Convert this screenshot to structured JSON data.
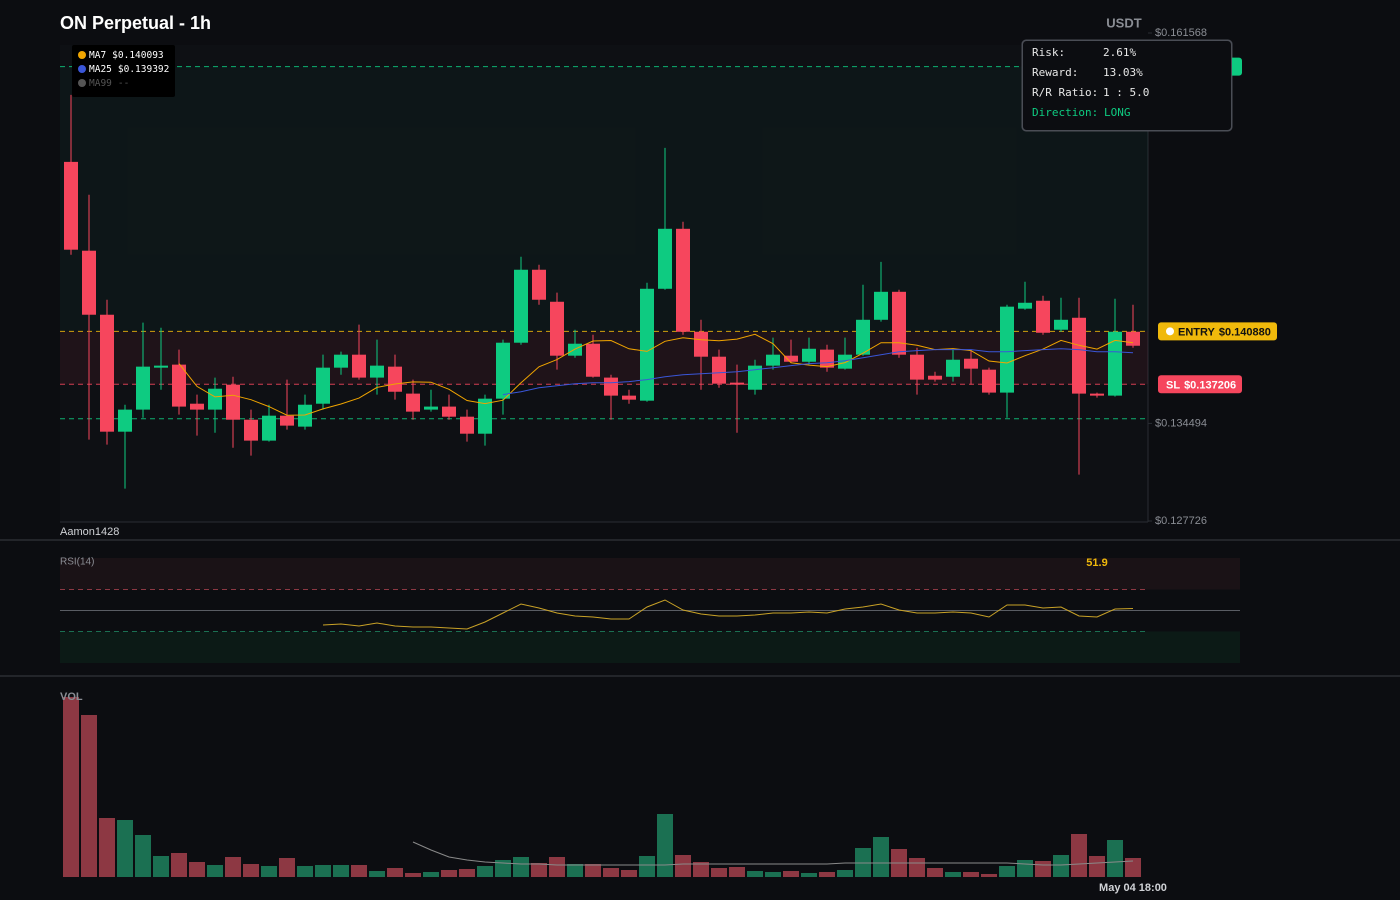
{
  "chart_data": {
    "type": "candlestick",
    "title": "ON Perpetual - 1h",
    "currency": "USDT",
    "watermark": "Aamon1428",
    "up_color": "#0ecb81",
    "down_color": "#f6465d",
    "categories": [
      null,
      null,
      null,
      null,
      null,
      null,
      null,
      null,
      null,
      null,
      null,
      null,
      null,
      null,
      null,
      null,
      null,
      null,
      null,
      null,
      null,
      null,
      null,
      null,
      null,
      null,
      null,
      null,
      null,
      null,
      null,
      null,
      null,
      null,
      null,
      null,
      null,
      null,
      null,
      null,
      null,
      null,
      null,
      null,
      null,
      null,
      null,
      null,
      null,
      null,
      null,
      null,
      null,
      null,
      null,
      null,
      null,
      null,
      null,
      "May 04 18:00"
    ],
    "open": [
      0.15263,
      0.14647,
      0.14203,
      0.13392,
      0.13545,
      0.13836,
      0.13857,
      0.13586,
      0.13545,
      0.13718,
      0.13475,
      0.1333,
      0.13503,
      0.13427,
      0.13586,
      0.13836,
      0.13926,
      0.13767,
      0.13843,
      0.13656,
      0.13545,
      0.13566,
      0.13496,
      0.13378,
      0.13621,
      0.14009,
      0.14515,
      0.14293,
      0.13919,
      0.14002,
      0.13767,
      0.13642,
      0.13607,
      0.14383,
      0.14799,
      0.14085,
      0.13912,
      0.13732,
      0.13683,
      0.1385,
      0.13919,
      0.13877,
      0.13961,
      0.13829,
      0.13926,
      0.14168,
      0.14362,
      0.13926,
      0.1378,
      0.13773,
      0.13898,
      0.13822,
      0.13663,
      0.14245,
      0.143,
      0.14099,
      0.14182,
      0.13656,
      0.13642,
      0.14085
    ],
    "high": [
      0.15728,
      0.15035,
      0.14307,
      0.13579,
      0.14148,
      0.14113,
      0.13961,
      0.13649,
      0.13767,
      0.13773,
      0.13545,
      0.13579,
      0.13753,
      0.13649,
      0.13926,
      0.13947,
      0.14134,
      0.1403,
      0.13926,
      0.13753,
      0.13683,
      0.13649,
      0.13545,
      0.13649,
      0.1403,
      0.14605,
      0.1455,
      0.14356,
      0.14099,
      0.14064,
      0.13787,
      0.13683,
      0.14425,
      0.1536,
      0.14848,
      0.14168,
      0.13961,
      0.13857,
      0.13891,
      0.14044,
      0.1403,
      0.14044,
      0.13995,
      0.14044,
      0.14411,
      0.1457,
      0.14376,
      0.13974,
      0.13808,
      0.13961,
      0.13961,
      0.13836,
      0.14272,
      0.14432,
      0.14335,
      0.14321,
      0.14321,
      0.13663,
      0.14314,
      0.14272
    ],
    "low": [
      0.14619,
      0.13337,
      0.13302,
      0.12997,
      0.13489,
      0.13683,
      0.1351,
      0.13365,
      0.13385,
      0.13281,
      0.13226,
      0.13323,
      0.13406,
      0.13406,
      0.13545,
      0.13787,
      0.13753,
      0.13649,
      0.13614,
      0.13475,
      0.13531,
      0.13475,
      0.13323,
      0.13295,
      0.1351,
      0.13995,
      0.14272,
      0.13822,
      0.13905,
      0.13767,
      0.13475,
      0.13586,
      0.136,
      0.14376,
      0.14064,
      0.13683,
      0.13697,
      0.13385,
      0.13649,
      0.13822,
      0.1387,
      0.13857,
      0.13808,
      0.13822,
      0.13919,
      0.14155,
      0.13905,
      0.13649,
      0.13739,
      0.13739,
      0.13718,
      0.13649,
      0.13489,
      0.14238,
      0.14064,
      0.14085,
      0.13094,
      0.13628,
      0.13635,
      0.13974
    ],
    "close": [
      0.14654,
      0.14203,
      0.13392,
      0.13545,
      0.13843,
      0.1385,
      0.13566,
      0.13545,
      0.1369,
      0.13475,
      0.1333,
      0.13503,
      0.13434,
      0.13579,
      0.13836,
      0.13926,
      0.13767,
      0.1385,
      0.13669,
      0.13531,
      0.13566,
      0.13496,
      0.13378,
      0.13621,
      0.14009,
      0.14515,
      0.14307,
      0.13919,
      0.14002,
      0.13773,
      0.13642,
      0.13614,
      0.14383,
      0.14799,
      0.14085,
      0.13912,
      0.13725,
      0.13718,
      0.1385,
      0.13926,
      0.13877,
      0.13967,
      0.13836,
      0.13926,
      0.14168,
      0.14362,
      0.13926,
      0.13753,
      0.13753,
      0.13891,
      0.13829,
      0.13663,
      0.14259,
      0.14286,
      0.14078,
      0.14168,
      0.13656,
      0.13642,
      0.14085,
      0.13988
    ],
    "ylim": [
      0.127726,
      0.161568
    ],
    "yticks": [
      {
        "value": 0.161568,
        "label": "$0.161568"
      },
      {
        "value": 0.134494,
        "label": "$0.134494"
      },
      {
        "value": 0.127726,
        "label": "$0.127726"
      }
    ],
    "ma": [
      {
        "name": "MA7",
        "color": "#f0a500",
        "legend_value": "$0.140093",
        "values": [
          null,
          null,
          null,
          null,
          null,
          null,
          0.13864,
          0.13706,
          0.13633,
          0.13645,
          0.13614,
          0.13566,
          0.13506,
          0.13508,
          0.1355,
          0.13584,
          0.13625,
          0.13699,
          0.13723,
          0.13737,
          0.13735,
          0.13686,
          0.13608,
          0.13587,
          0.1361,
          0.13731,
          0.13842,
          0.13892,
          0.13965,
          0.14021,
          0.14024,
          0.13967,
          0.13949,
          0.14019,
          0.14043,
          0.1403,
          0.14023,
          0.14034,
          0.14067,
          0.14002,
          0.1387,
          0.13854,
          0.13843,
          0.13871,
          0.13936,
          0.14009,
          0.14009,
          0.13991,
          0.13961,
          0.13968,
          0.13954,
          0.13882,
          0.13868,
          0.13919,
          0.13965,
          0.14025,
          0.13991,
          0.13965,
          0.14025,
          0.140093
        ]
      },
      {
        "name": "MA25",
        "color": "#3a56d8",
        "legend_value": "$0.139392",
        "values": [
          null,
          null,
          null,
          null,
          null,
          null,
          null,
          null,
          null,
          null,
          null,
          null,
          null,
          null,
          null,
          null,
          null,
          null,
          null,
          null,
          null,
          null,
          null,
          null,
          0.13649,
          0.13669,
          0.13697,
          0.13711,
          0.13725,
          0.13732,
          0.13732,
          0.13739,
          0.13753,
          0.13773,
          0.13787,
          0.13794,
          0.13801,
          0.13808,
          0.13822,
          0.13836,
          0.1385,
          0.13864,
          0.1387,
          0.13884,
          0.13905,
          0.13926,
          0.13947,
          0.13954,
          0.13961,
          0.13961,
          0.13961,
          0.13947,
          0.13947,
          0.13954,
          0.13961,
          0.13967,
          0.13961,
          0.13947,
          0.13947,
          0.139392
        ]
      },
      {
        "name": "MA99",
        "color": "#555555",
        "legend_value": "--"
      }
    ],
    "levels": [
      {
        "name": "ENTRY",
        "value": 0.14088,
        "label": "$0.140880",
        "color": "#f0b90b"
      },
      {
        "name": "SL",
        "value": 0.137206,
        "label": "$0.137206",
        "color": "#f6465d"
      },
      {
        "value": 0.15924,
        "color": "#0ecb81"
      },
      {
        "value": 0.13482,
        "color": "#0ecb81"
      }
    ],
    "info": [
      {
        "label": "Risk:",
        "value": "2.61%"
      },
      {
        "label": "Reward:",
        "value": "13.03%"
      },
      {
        "label": "R/R Ratio:",
        "value": "1 : 5.0"
      },
      {
        "label": "Direction:",
        "value": "LONG"
      }
    ],
    "rsi": {
      "title": "RSI(14)",
      "color": "#c9a227",
      "ylim": [
        0,
        100
      ],
      "levels": [
        70,
        50,
        30
      ],
      "values": [
        null,
        null,
        null,
        null,
        null,
        null,
        null,
        null,
        null,
        null,
        null,
        null,
        null,
        null,
        36.2,
        37.1,
        35.2,
        38.1,
        35.2,
        34.3,
        34.3,
        33.3,
        32.4,
        39.0,
        47.6,
        56.2,
        52.4,
        47.6,
        44.8,
        43.8,
        41.9,
        41.9,
        53.3,
        60.0,
        50.5,
        46.7,
        44.8,
        44.8,
        45.7,
        47.6,
        47.6,
        48.6,
        47.6,
        51.4,
        53.3,
        56.2,
        50.5,
        47.6,
        47.6,
        48.6,
        47.6,
        43.8,
        55.2,
        55.2,
        52.4,
        53.3,
        44.8,
        43.8,
        51.4,
        51.9
      ]
    },
    "volume": {
      "title": "VOL",
      "ylim": [
        0,
        182
      ],
      "up_color": "#1b7052",
      "down_color": "#8d3843",
      "ma_color": "#8a8a8a",
      "values": [
        180,
        162,
        59,
        57,
        42,
        21,
        24,
        15,
        12,
        20,
        13,
        11,
        19,
        11,
        12,
        12,
        12,
        6,
        9,
        4,
        5,
        7,
        8,
        11,
        17,
        20,
        14,
        20,
        13,
        13,
        9,
        7,
        21,
        63,
        22,
        15,
        9,
        10,
        6,
        5,
        6,
        4,
        5,
        7,
        29,
        40,
        28,
        19,
        9,
        5,
        5,
        3,
        11,
        17,
        16,
        22,
        43,
        21,
        37,
        19
      ],
      "ma_values": [
        null,
        null,
        null,
        null,
        null,
        null,
        null,
        null,
        null,
        null,
        null,
        null,
        null,
        null,
        null,
        null,
        null,
        null,
        null,
        35,
        27,
        20,
        17,
        15,
        14,
        13,
        13,
        12,
        12,
        12,
        12,
        12,
        12,
        12,
        13,
        13,
        13,
        13,
        13,
        13,
        13,
        13,
        13,
        14,
        14,
        14,
        14,
        14,
        14,
        14,
        14,
        14,
        14,
        13,
        12,
        12,
        13,
        14,
        15,
        16
      ]
    }
  }
}
